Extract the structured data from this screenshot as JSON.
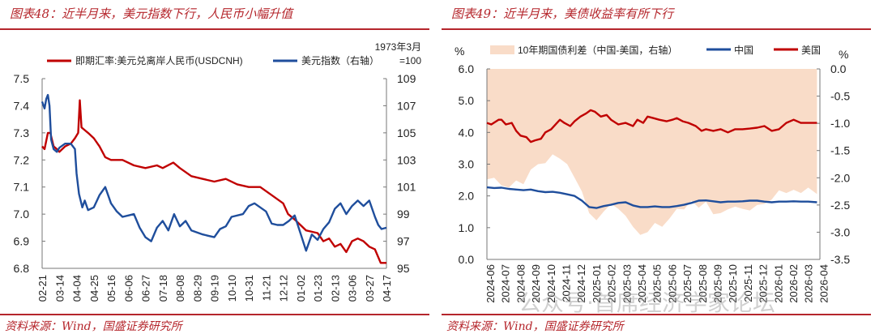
{
  "watermark": "公众号·首席经济学家论坛",
  "chart_data": [
    {
      "type": "line",
      "title": "图表48：近半月来，美元指数下行，人民币小幅升值",
      "source": "资料来源：Wind，国盛证券研究所",
      "note_line1": "1973年3月",
      "note_line2": "=100",
      "x_unit": "days since 02-21",
      "x_ticks": [
        "02-21",
        "03-14",
        "04-04",
        "04-25",
        "05-16",
        "06-06",
        "06-27",
        "07-18",
        "08-08",
        "08-29",
        "09-19",
        "10-10",
        "10-31",
        "11-21",
        "12-12",
        "01-02",
        "01-23",
        "02-13",
        "03-06",
        "03-27",
        "04-17"
      ],
      "xlim": [
        0,
        420
      ],
      "ylim_left": [
        6.8,
        7.5
      ],
      "yticks_left": [
        "7.5",
        "7.4",
        "7.3",
        "7.2",
        "7.1",
        "7.0",
        "6.9",
        "6.8"
      ],
      "ylim_right": [
        95,
        109
      ],
      "yticks_right": [
        "109",
        "107",
        "105",
        "103",
        "101",
        "99",
        "97",
        "95"
      ],
      "series": [
        {
          "name": "即期汇率:美元兑离岸人民币(USDCNH)",
          "axis": "left",
          "color": "#c00000",
          "points": [
            [
              0,
              7.25
            ],
            [
              3,
              7.24
            ],
            [
              7,
              7.3
            ],
            [
              10,
              7.3
            ],
            [
              14,
              7.25
            ],
            [
              18,
              7.24
            ],
            [
              21,
              7.23
            ],
            [
              28,
              7.25
            ],
            [
              35,
              7.26
            ],
            [
              40,
              7.28
            ],
            [
              44,
              7.3
            ],
            [
              46,
              7.42
            ],
            [
              48,
              7.32
            ],
            [
              52,
              7.31
            ],
            [
              56,
              7.3
            ],
            [
              63,
              7.28
            ],
            [
              70,
              7.25
            ],
            [
              77,
              7.21
            ],
            [
              84,
              7.2
            ],
            [
              98,
              7.2
            ],
            [
              112,
              7.18
            ],
            [
              126,
              7.17
            ],
            [
              140,
              7.18
            ],
            [
              147,
              7.17
            ],
            [
              160,
              7.19
            ],
            [
              168,
              7.17
            ],
            [
              182,
              7.14
            ],
            [
              196,
              7.13
            ],
            [
              210,
              7.12
            ],
            [
              224,
              7.13
            ],
            [
              238,
              7.11
            ],
            [
              252,
              7.1
            ],
            [
              266,
              7.1
            ],
            [
              280,
              7.07
            ],
            [
              294,
              7.04
            ],
            [
              300,
              7.0
            ],
            [
              308,
              6.98
            ],
            [
              315,
              6.96
            ],
            [
              322,
              6.94
            ],
            [
              336,
              6.93
            ],
            [
              343,
              6.9
            ],
            [
              350,
              6.91
            ],
            [
              357,
              6.88
            ],
            [
              364,
              6.89
            ],
            [
              371,
              6.86
            ],
            [
              378,
              6.9
            ],
            [
              385,
              6.91
            ],
            [
              392,
              6.9
            ],
            [
              399,
              6.88
            ],
            [
              406,
              6.87
            ],
            [
              413,
              6.82
            ],
            [
              420,
              6.82
            ]
          ]
        },
        {
          "name": "美元指数（右轴）",
          "axis": "right",
          "color": "#1f4e9c",
          "points": [
            [
              0,
              107.3
            ],
            [
              3,
              106.8
            ],
            [
              5,
              107.5
            ],
            [
              7,
              107.8
            ],
            [
              9,
              107
            ],
            [
              11,
              104.5
            ],
            [
              14,
              103.8
            ],
            [
              18,
              103.6
            ],
            [
              21,
              103.9
            ],
            [
              28,
              104.2
            ],
            [
              35,
              104.2
            ],
            [
              40,
              103.8
            ],
            [
              42,
              102
            ],
            [
              45,
              100.5
            ],
            [
              49,
              99.5
            ],
            [
              52,
              100
            ],
            [
              56,
              99.3
            ],
            [
              63,
              99.5
            ],
            [
              70,
              100.4
            ],
            [
              77,
              101
            ],
            [
              84,
              99.8
            ],
            [
              91,
              99.2
            ],
            [
              98,
              98.8
            ],
            [
              105,
              98.9
            ],
            [
              112,
              99
            ],
            [
              119,
              98
            ],
            [
              126,
              97.3
            ],
            [
              133,
              97
            ],
            [
              140,
              98
            ],
            [
              147,
              98.5
            ],
            [
              154,
              97.8
            ],
            [
              161,
              99
            ],
            [
              168,
              98.1
            ],
            [
              175,
              98.5
            ],
            [
              182,
              97.8
            ],
            [
              196,
              97.5
            ],
            [
              203,
              97.4
            ],
            [
              210,
              97.3
            ],
            [
              217,
              97.9
            ],
            [
              224,
              98.1
            ],
            [
              231,
              98.8
            ],
            [
              245,
              99
            ],
            [
              252,
              99.6
            ],
            [
              259,
              99.8
            ],
            [
              266,
              99.5
            ],
            [
              273,
              99.2
            ],
            [
              280,
              98.3
            ],
            [
              287,
              98.2
            ],
            [
              294,
              98.2
            ],
            [
              301,
              98.5
            ],
            [
              308,
              98.9
            ],
            [
              315,
              97.6
            ],
            [
              322,
              96.3
            ],
            [
              329,
              97.5
            ],
            [
              336,
              97.1
            ],
            [
              343,
              97.9
            ],
            [
              350,
              98.4
            ],
            [
              357,
              99.4
            ],
            [
              364,
              99.8
            ],
            [
              371,
              99
            ],
            [
              378,
              99.6
            ],
            [
              385,
              100
            ],
            [
              392,
              99.6
            ],
            [
              399,
              100
            ],
            [
              406,
              98.8
            ],
            [
              410,
              98.2
            ],
            [
              414,
              97.9
            ],
            [
              420,
              98
            ]
          ]
        }
      ]
    },
    {
      "type": "line",
      "title": "图表49：近半月来，美债收益率有所下行",
      "source": "资料来源：Wind，国盛证券研究所",
      "x_unit": "months since 2024-06",
      "x_ticks": [
        "2024-06",
        "2024-07",
        "2024-08",
        "2024-09",
        "2024-10",
        "2024-11",
        "2024-12",
        "2025-01",
        "2025-02",
        "2025-03",
        "2025-04",
        "2025-05",
        "2025-06",
        "2025-07",
        "2025-08",
        "2025-09",
        "2025-10",
        "2025-11",
        "2025-12",
        "2026-01",
        "2026-02",
        "2026-03",
        "2026-04"
      ],
      "xlim": [
        0,
        22.8
      ],
      "ylabel_left": "%",
      "ylabel_right": "%",
      "ylim_left": [
        0,
        6
      ],
      "yticks_left": [
        "6.0",
        "5.0",
        "4.0",
        "3.0",
        "2.0",
        "1.0",
        "0.0"
      ],
      "ylim_right": [
        -3.5,
        0
      ],
      "yticks_right": [
        "0.0",
        "-0.5",
        "-1.0",
        "-1.5",
        "-2.0",
        "-2.5",
        "-3.0",
        "-3.5"
      ],
      "spread_series": {
        "name": "10年期国债利差（中国-美国，右轴）",
        "type": "area",
        "color": "#f9dcc8",
        "definition": "中国 - 美国"
      },
      "series": [
        {
          "name": "中国",
          "axis": "left",
          "color": "#1f4e9c",
          "points": [
            [
              0,
              2.27
            ],
            [
              0.5,
              2.25
            ],
            [
              1,
              2.26
            ],
            [
              1.5,
              2.22
            ],
            [
              2,
              2.2
            ],
            [
              2.5,
              2.18
            ],
            [
              3,
              2.2
            ],
            [
              3.5,
              2.15
            ],
            [
              4,
              2.12
            ],
            [
              4.5,
              2.13
            ],
            [
              5,
              2.1
            ],
            [
              5.5,
              2.05
            ],
            [
              6,
              2.0
            ],
            [
              6.5,
              1.85
            ],
            [
              7,
              1.65
            ],
            [
              7.5,
              1.62
            ],
            [
              8,
              1.68
            ],
            [
              8.5,
              1.72
            ],
            [
              9,
              1.78
            ],
            [
              9.5,
              1.8
            ],
            [
              10,
              1.7
            ],
            [
              10.5,
              1.65
            ],
            [
              11,
              1.65
            ],
            [
              11.5,
              1.67
            ],
            [
              12,
              1.65
            ],
            [
              12.5,
              1.65
            ],
            [
              13,
              1.68
            ],
            [
              13.5,
              1.72
            ],
            [
              14,
              1.78
            ],
            [
              14.5,
              1.85
            ],
            [
              15,
              1.86
            ],
            [
              15.5,
              1.83
            ],
            [
              16,
              1.8
            ],
            [
              16.5,
              1.82
            ],
            [
              17,
              1.82
            ],
            [
              17.5,
              1.83
            ],
            [
              18,
              1.85
            ],
            [
              18.5,
              1.85
            ],
            [
              19,
              1.82
            ],
            [
              19.5,
              1.8
            ],
            [
              20,
              1.82
            ],
            [
              20.5,
              1.82
            ],
            [
              21,
              1.83
            ],
            [
              21.5,
              1.82
            ],
            [
              22,
              1.82
            ],
            [
              22.6,
              1.8
            ]
          ]
        },
        {
          "name": "美国",
          "axis": "left",
          "color": "#c00000",
          "points": [
            [
              0,
              4.3
            ],
            [
              0.3,
              4.25
            ],
            [
              0.8,
              4.4
            ],
            [
              1,
              4.4
            ],
            [
              1.3,
              4.25
            ],
            [
              1.7,
              4.3
            ],
            [
              2,
              4.05
            ],
            [
              2.3,
              3.9
            ],
            [
              2.7,
              3.85
            ],
            [
              3,
              3.7
            ],
            [
              3.3,
              3.75
            ],
            [
              3.7,
              3.8
            ],
            [
              4,
              4.0
            ],
            [
              4.4,
              4.1
            ],
            [
              4.8,
              4.3
            ],
            [
              5,
              4.4
            ],
            [
              5.3,
              4.3
            ],
            [
              5.7,
              4.2
            ],
            [
              6,
              4.35
            ],
            [
              6.4,
              4.5
            ],
            [
              6.8,
              4.6
            ],
            [
              7.1,
              4.7
            ],
            [
              7.4,
              4.65
            ],
            [
              7.8,
              4.5
            ],
            [
              8.2,
              4.55
            ],
            [
              8.5,
              4.4
            ],
            [
              9,
              4.25
            ],
            [
              9.5,
              4.3
            ],
            [
              10,
              4.2
            ],
            [
              10.3,
              4.4
            ],
            [
              10.7,
              4.3
            ],
            [
              11,
              4.5
            ],
            [
              11.4,
              4.45
            ],
            [
              11.8,
              4.4
            ],
            [
              12.3,
              4.35
            ],
            [
              12.7,
              4.4
            ],
            [
              13,
              4.45
            ],
            [
              13.4,
              4.35
            ],
            [
              13.8,
              4.3
            ],
            [
              14.3,
              4.2
            ],
            [
              14.7,
              4.05
            ],
            [
              15,
              4.1
            ],
            [
              15.5,
              4.05
            ],
            [
              16,
              4.1
            ],
            [
              16.5,
              4.0
            ],
            [
              17,
              4.1
            ],
            [
              17.5,
              4.1
            ],
            [
              18,
              4.12
            ],
            [
              18.5,
              4.15
            ],
            [
              19,
              4.2
            ],
            [
              19.5,
              4.05
            ],
            [
              20,
              4.1
            ],
            [
              20.5,
              4.3
            ],
            [
              21,
              4.4
            ],
            [
              21.5,
              4.3
            ],
            [
              22,
              4.3
            ],
            [
              22.6,
              4.3
            ]
          ]
        }
      ]
    }
  ]
}
